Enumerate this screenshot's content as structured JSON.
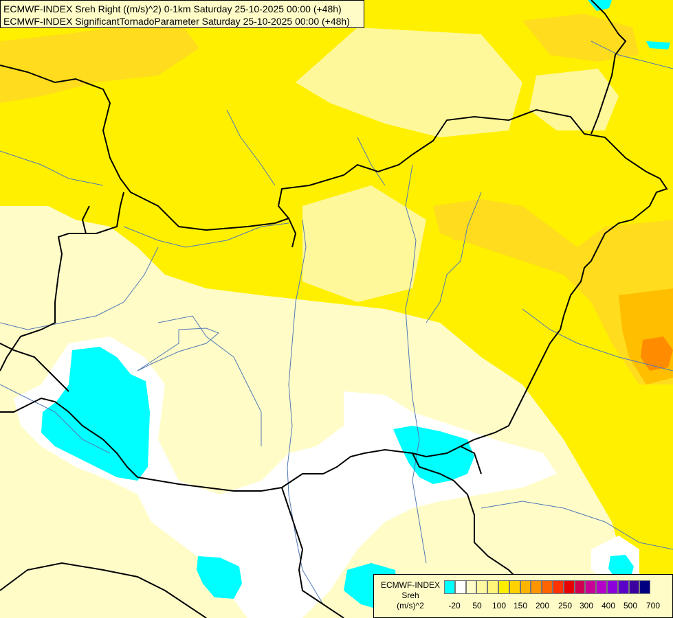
{
  "header": {
    "line1": "ECMWF-INDEX Sreh Right ((m/s)^2) 0-1km Saturday 25-10-2025 00:00 (+48h)",
    "line2": "ECMWF-INDEX SignificantTornadoParameter Saturday 25-10-2025 00:00 (+48h)"
  },
  "legend": {
    "line1": "ECMWF-INDEX",
    "line2": "Sreh",
    "line3": "(m/s)^2",
    "colors": [
      "#00ffff",
      "#ffffff",
      "#fffcc8",
      "#fff8a0",
      "#fff478",
      "#ffee00",
      "#ffd200",
      "#ffb400",
      "#ff9600",
      "#ff6400",
      "#ff3200",
      "#e60000",
      "#d20050",
      "#c80096",
      "#b400c8",
      "#8c00dc",
      "#5a00c8",
      "#3c00a0",
      "#000080"
    ],
    "ticks": [
      "-20",
      "50",
      "100",
      "150",
      "200",
      "250",
      "300",
      "400",
      "500",
      "700"
    ]
  },
  "palette": {
    "pale_yellow": "#fffcc8",
    "light_yellow": "#fff89a",
    "yellow": "#fff000",
    "gold": "#ffdc1e",
    "orange": "#ffbe00",
    "dark_orange": "#ff8c00",
    "cyan": "#00ffff",
    "white": "#ffffff",
    "border": "#000000",
    "river": "#5078b4"
  }
}
